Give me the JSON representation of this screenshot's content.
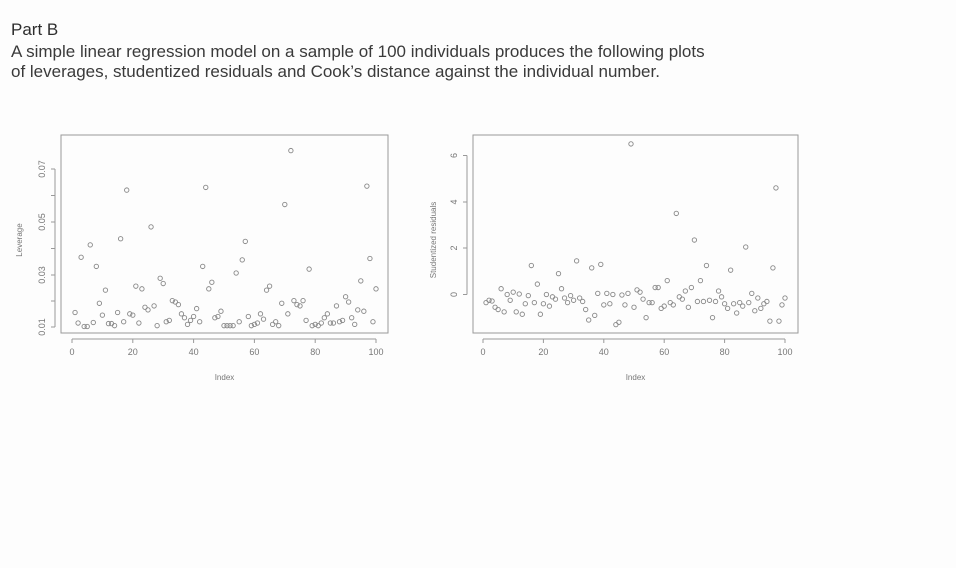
{
  "document": {
    "heading": "Part B",
    "paragraph_line1": "A simple linear regression model on a sample of 100 individuals produces the following plots",
    "paragraph_line2": "of leverages, studentized residuals and Cook’s distance against the individual number."
  },
  "chart_data": [
    {
      "type": "scatter",
      "title": "",
      "xlabel": "Index",
      "ylabel": "Leverage",
      "xlim": [
        0,
        100
      ],
      "ylim": [
        0.0085,
        0.081
      ],
      "xticks": [
        "0",
        "20",
        "40",
        "60",
        "80",
        "100"
      ],
      "yticks": [
        "0.01",
        "0.03",
        "0.05",
        "0.07"
      ],
      "grid": false,
      "x": [
        1,
        2,
        3,
        4,
        5,
        6,
        7,
        8,
        9,
        10,
        11,
        12,
        13,
        14,
        15,
        16,
        17,
        18,
        19,
        20,
        21,
        22,
        23,
        24,
        25,
        26,
        27,
        28,
        29,
        30,
        31,
        32,
        33,
        34,
        35,
        36,
        37,
        38,
        39,
        40,
        41,
        42,
        43,
        44,
        45,
        46,
        47,
        48,
        49,
        50,
        51,
        52,
        53,
        54,
        55,
        56,
        57,
        58,
        59,
        60,
        61,
        62,
        63,
        64,
        65,
        66,
        67,
        68,
        69,
        70,
        71,
        72,
        73,
        74,
        75,
        76,
        77,
        78,
        79,
        80,
        81,
        82,
        83,
        84,
        85,
        86,
        87,
        88,
        89,
        90,
        91,
        92,
        93,
        94,
        95,
        96,
        97,
        98,
        99,
        100
      ],
      "values": [
        0.0155,
        0.0115,
        0.0365,
        0.0102,
        0.0102,
        0.0412,
        0.0117,
        0.033,
        0.019,
        0.0145,
        0.024,
        0.0113,
        0.0113,
        0.0105,
        0.0155,
        0.0435,
        0.012,
        0.062,
        0.015,
        0.0145,
        0.0255,
        0.0115,
        0.0245,
        0.0175,
        0.0165,
        0.048,
        0.018,
        0.0105,
        0.0285,
        0.0265,
        0.012,
        0.0125,
        0.02,
        0.0195,
        0.0185,
        0.015,
        0.0135,
        0.011,
        0.0125,
        0.014,
        0.017,
        0.012,
        0.033,
        0.063,
        0.0245,
        0.027,
        0.0135,
        0.014,
        0.016,
        0.0105,
        0.0105,
        0.0105,
        0.0105,
        0.0305,
        0.012,
        0.0355,
        0.0425,
        0.014,
        0.0105,
        0.011,
        0.0115,
        0.015,
        0.013,
        0.024,
        0.0255,
        0.011,
        0.012,
        0.0105,
        0.019,
        0.0565,
        0.015,
        0.077,
        0.02,
        0.0185,
        0.018,
        0.02,
        0.0125,
        0.032,
        0.0105,
        0.011,
        0.0105,
        0.0115,
        0.0135,
        0.015,
        0.0115,
        0.0115,
        0.018,
        0.012,
        0.0125,
        0.0215,
        0.0195,
        0.0135,
        0.011,
        0.0165,
        0.0275,
        0.016,
        0.0635,
        0.036,
        0.012,
        0.0245
      ]
    },
    {
      "type": "scatter",
      "title": "",
      "xlabel": "Index",
      "ylabel": "Studentized residuals",
      "xlim": [
        0,
        100
      ],
      "ylim": [
        -1.7,
        7.3
      ],
      "xticks": [
        "0",
        "20",
        "40",
        "60",
        "80",
        "100"
      ],
      "yticks": [
        "0",
        "2",
        "4",
        "6"
      ],
      "grid": false,
      "x": [
        1,
        2,
        3,
        4,
        5,
        6,
        7,
        8,
        9,
        10,
        11,
        12,
        13,
        14,
        15,
        16,
        17,
        18,
        19,
        20,
        21,
        22,
        23,
        24,
        25,
        26,
        27,
        28,
        29,
        30,
        31,
        32,
        33,
        34,
        35,
        36,
        37,
        38,
        39,
        40,
        41,
        42,
        43,
        44,
        45,
        46,
        47,
        48,
        49,
        50,
        51,
        52,
        53,
        54,
        55,
        56,
        57,
        58,
        59,
        60,
        61,
        62,
        63,
        64,
        65,
        66,
        67,
        68,
        69,
        70,
        71,
        72,
        73,
        74,
        75,
        76,
        77,
        78,
        79,
        80,
        81,
        82,
        83,
        84,
        85,
        86,
        87,
        88,
        89,
        90,
        91,
        92,
        93,
        94,
        95,
        96,
        97,
        98,
        99,
        100
      ],
      "values": [
        -0.35,
        -0.25,
        -0.28,
        -0.55,
        -0.65,
        0.25,
        -0.75,
        0.0,
        -0.25,
        0.1,
        -0.75,
        0.02,
        -0.85,
        -0.4,
        -0.05,
        1.25,
        -0.35,
        0.45,
        -0.85,
        -0.4,
        0.0,
        -0.5,
        -0.1,
        -0.2,
        0.9,
        0.25,
        -0.15,
        -0.35,
        -0.05,
        -0.25,
        1.45,
        -0.15,
        -0.3,
        -0.65,
        -1.1,
        1.15,
        -0.9,
        0.05,
        1.3,
        -0.45,
        0.05,
        -0.4,
        0.0,
        -1.3,
        -1.2,
        -0.02,
        -0.45,
        0.05,
        6.5,
        -0.55,
        0.2,
        0.1,
        -0.2,
        -1.0,
        -0.35,
        -0.35,
        0.3,
        0.3,
        -0.6,
        -0.5,
        0.6,
        -0.35,
        -0.45,
        3.5,
        -0.1,
        -0.2,
        0.15,
        -0.55,
        0.3,
        2.35,
        -0.3,
        0.6,
        -0.3,
        1.25,
        -0.25,
        -1.0,
        -0.3,
        0.15,
        -0.1,
        -0.4,
        -0.6,
        1.05,
        -0.4,
        -0.8,
        -0.35,
        -0.5,
        2.05,
        -0.35,
        0.05,
        -0.7,
        -0.15,
        -0.6,
        -0.4,
        -0.3,
        -1.15,
        1.15,
        4.6,
        -1.15,
        -0.45,
        -0.15
      ]
    }
  ]
}
